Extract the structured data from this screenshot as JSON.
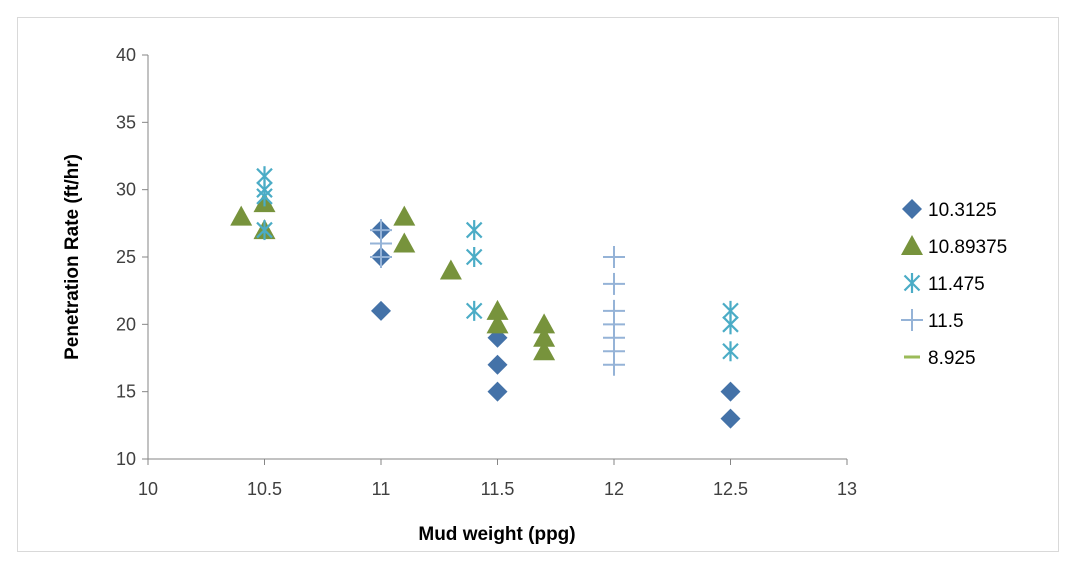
{
  "chart_data": {
    "type": "scatter",
    "title": "",
    "xlabel": "Mud weight (ppg)",
    "ylabel": "Penetration Rate (ft/hr)",
    "xlim": [
      10,
      13
    ],
    "ylim": [
      10,
      40
    ],
    "xticks": [
      10,
      10.5,
      11,
      11.5,
      12,
      12.5,
      13
    ],
    "yticks": [
      10,
      15,
      20,
      25,
      30,
      35,
      40
    ],
    "grid": false,
    "legend_position": "right",
    "series": [
      {
        "name": "10.3125",
        "marker": "diamond",
        "color": "#4472a8",
        "points": [
          [
            11,
            27
          ],
          [
            11,
            25
          ],
          [
            11,
            21
          ],
          [
            11.5,
            19
          ],
          [
            11.5,
            17
          ],
          [
            11.5,
            15
          ],
          [
            12.5,
            15
          ],
          [
            12.5,
            13
          ]
        ]
      },
      {
        "name": "10.89375",
        "marker": "triangle",
        "color": "#77933c",
        "points": [
          [
            10.4,
            28
          ],
          [
            10.5,
            29
          ],
          [
            10.5,
            27
          ],
          [
            11.1,
            28
          ],
          [
            11.1,
            26
          ],
          [
            11.3,
            24
          ],
          [
            11.5,
            21
          ],
          [
            11.5,
            20
          ],
          [
            11.7,
            20
          ],
          [
            11.7,
            19
          ],
          [
            11.7,
            18
          ]
        ]
      },
      {
        "name": "11.475",
        "marker": "asterisk",
        "color": "#4bacc6",
        "points": [
          [
            10.5,
            31
          ],
          [
            10.5,
            30
          ],
          [
            10.5,
            29.5
          ],
          [
            10.5,
            27
          ],
          [
            11.4,
            27
          ],
          [
            11.4,
            25
          ],
          [
            11.4,
            21
          ],
          [
            12.5,
            21
          ],
          [
            12.5,
            20
          ],
          [
            12.5,
            18
          ]
        ]
      },
      {
        "name": "11.5",
        "marker": "plus",
        "color": "#95b3d7",
        "points": [
          [
            11,
            27
          ],
          [
            11,
            26
          ],
          [
            11,
            25
          ],
          [
            12,
            25
          ],
          [
            12,
            23
          ],
          [
            12,
            21
          ],
          [
            12,
            20
          ],
          [
            12,
            19
          ],
          [
            12,
            18
          ],
          [
            12,
            17
          ]
        ]
      },
      {
        "name": "8.925",
        "marker": "dash",
        "color": "#9bbb59",
        "points": []
      }
    ]
  }
}
